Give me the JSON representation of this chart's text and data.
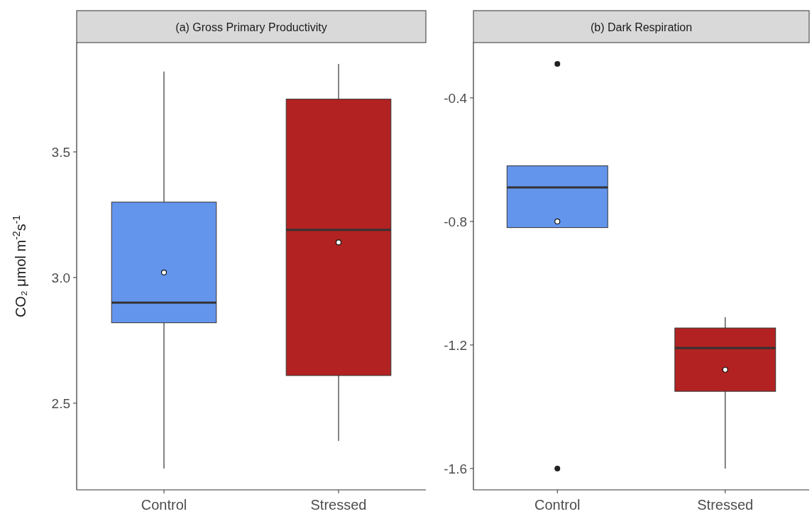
{
  "chart_data": [
    {
      "type": "box",
      "title": "(a) Gross Primary Productivity",
      "ylabel": "CO₂ μmol m$^{-2}$s$^{-1}$",
      "categories": [
        "Control",
        "Stressed"
      ],
      "colors": [
        "#6495ed",
        "#b22222"
      ],
      "ylim": [
        2.155,
        3.935
      ],
      "yticks": [
        {
          "value": 2.5,
          "label": "2.5"
        },
        {
          "value": 3.0,
          "label": "3.0"
        },
        {
          "value": 3.5,
          "label": "3.5"
        }
      ],
      "grid": false,
      "boxes": [
        {
          "low": 2.24,
          "q1": 2.82,
          "median": 2.9,
          "q3": 3.3,
          "high": 3.82,
          "mean": 3.02
        },
        {
          "low": 2.35,
          "q1": 2.61,
          "median": 3.19,
          "q3": 3.71,
          "high": 3.85,
          "mean": 3.14
        }
      ]
    },
    {
      "type": "box",
      "title": "(b) Dark Respiration",
      "categories": [
        "Control",
        "Stressed"
      ],
      "colors": [
        "#6495ed",
        "#b22222"
      ],
      "ylim": [
        -1.669,
        -0.221
      ],
      "yticks": [
        -1.6,
        -1.2,
        -0.8,
        -0.4
      ],
      "grid": false,
      "boxes": [
        {
          "low": -0.82,
          "q1": -0.82,
          "median": -0.69,
          "q3": -0.62,
          "high": -0.62,
          "mean": -0.8,
          "outliers": [
            -0.29,
            -1.6
          ]
        },
        {
          "low": -1.6,
          "q1": -1.35,
          "median": -1.21,
          "q3": -1.145,
          "high": -1.11,
          "mean": -1.28
        }
      ]
    }
  ]
}
